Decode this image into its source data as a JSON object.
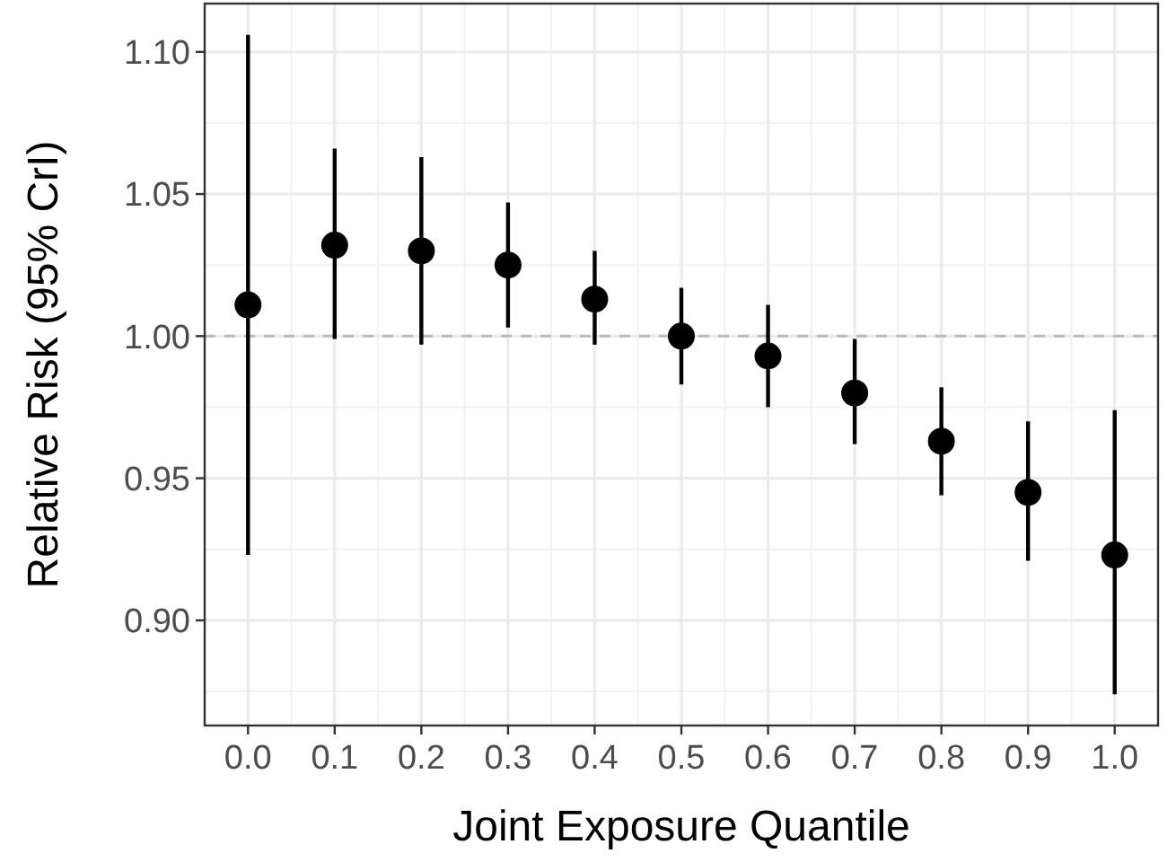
{
  "chart_data": {
    "type": "scatter",
    "xlabel": "Joint Exposure Quantile",
    "ylabel": "Relative Risk (95% CrI)",
    "x": [
      0.0,
      0.1,
      0.2,
      0.3,
      0.4,
      0.5,
      0.6,
      0.7,
      0.8,
      0.9,
      1.0
    ],
    "series": [
      {
        "color": "#000000",
        "values": [
          1.011,
          1.032,
          1.03,
          1.025,
          1.013,
          1.0,
          0.993,
          0.98,
          0.963,
          0.945,
          0.923
        ],
        "errors": [
          [
            0.923,
            1.106
          ],
          [
            0.999,
            1.066
          ],
          [
            0.997,
            1.063
          ],
          [
            1.003,
            1.047
          ],
          [
            0.997,
            1.03
          ],
          [
            0.983,
            1.017
          ],
          [
            0.975,
            1.011
          ],
          [
            0.962,
            0.999
          ],
          [
            0.944,
            0.982
          ],
          [
            0.921,
            0.97
          ],
          [
            0.874,
            0.974
          ]
        ]
      }
    ],
    "xlim": [
      -0.05,
      1.05
    ],
    "xticks": [
      {
        "value": 0,
        "label": "0.0"
      },
      0.1,
      0.2,
      0.3,
      0.4,
      0.5,
      0.6,
      0.7,
      0.8,
      0.9,
      {
        "value": 1,
        "label": "1.0"
      }
    ],
    "ylim": [
      0.863,
      1.117
    ],
    "yticks": [
      {
        "value": 0.9,
        "label": "0.90"
      },
      0.95,
      {
        "value": 1,
        "label": "1.00"
      },
      1.05,
      {
        "value": 1.1,
        "label": "1.10"
      }
    ],
    "ref_lines": [
      {
        "axis": "y",
        "value": 1,
        "color": "#bbbbbb",
        "line_style": "dashed"
      }
    ],
    "grid": true,
    "marker": "circle"
  }
}
